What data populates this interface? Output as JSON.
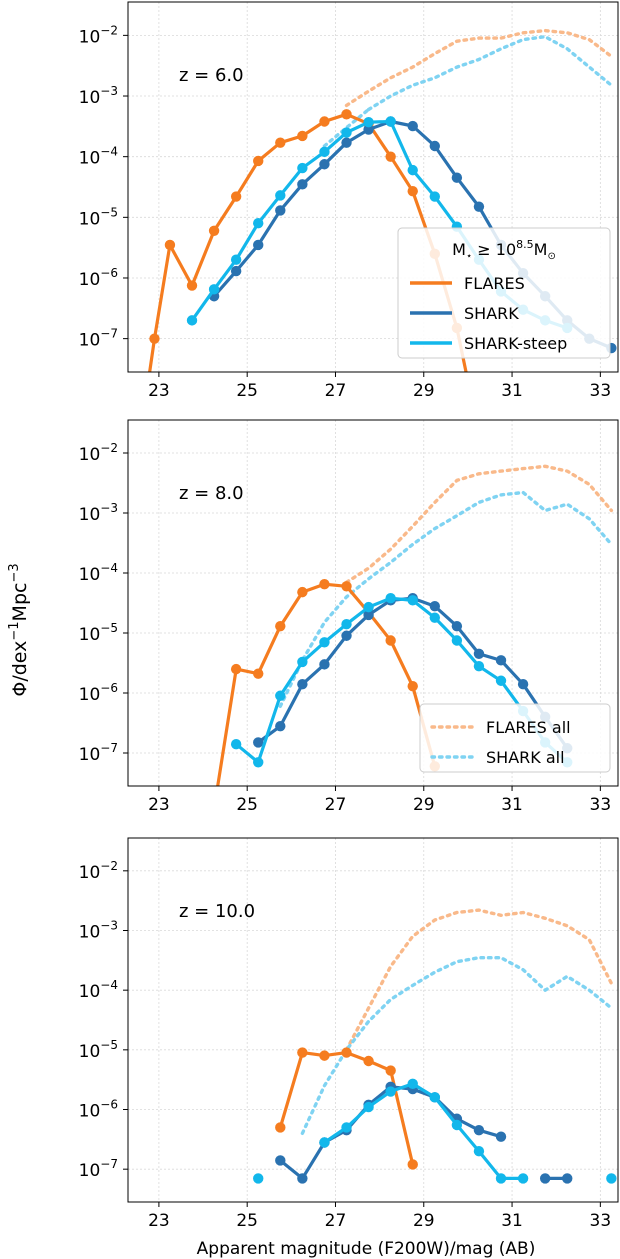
{
  "figure": {
    "ylabel": "Φ/dex⁻¹Mpc⁻³",
    "xlabel": "Apparent magnitude (F200W)/mag (AB)"
  },
  "colors": {
    "FLARES": "#f57c1f",
    "SHARK": "#2a72b0",
    "SHARK-steep": "#12b7eb",
    "FLARES all": "#f9b98a",
    "SHARK all": "#7fd3f2"
  },
  "chart_data": [
    {
      "type": "line",
      "annotation": "z = 6.0",
      "xlim": [
        22.3,
        33.4
      ],
      "ylim_log10": [
        -7.55,
        -1.45
      ],
      "y_scale": "log",
      "grid": true,
      "x_ticks": [
        "23",
        "25",
        "27",
        "29",
        "31",
        "33"
      ],
      "y_ticks": [
        {
          "exp": -2,
          "base": "10",
          "sup": "−2"
        },
        {
          "exp": -3,
          "base": "10",
          "sup": "−3"
        },
        {
          "exp": -4,
          "base": "10",
          "sup": "−4"
        },
        {
          "exp": -5,
          "base": "10",
          "sup": "−5"
        },
        {
          "exp": -6,
          "base": "10",
          "sup": "−6"
        },
        {
          "exp": -7,
          "base": "10",
          "sup": "−7"
        }
      ],
      "legend": {
        "placement": "lower-right",
        "title_main": "M",
        "title_sub": "⋆",
        "title_mid": " ≥ 10",
        "title_sup": "8.5",
        "title_end": "M",
        "title_end_sub": "⊙",
        "entries": [
          "FLARES",
          "SHARK",
          "SHARK-steep"
        ]
      },
      "series": [
        {
          "name": "FLARES all",
          "style": "dotted",
          "x": [
            27.25,
            27.75,
            28.25,
            28.75,
            29.25,
            29.75,
            30.25,
            30.75,
            31.25,
            31.75,
            32.25,
            32.75,
            33.25
          ],
          "y": [
            0.0007,
            0.0012,
            0.002,
            0.003,
            0.005,
            0.008,
            0.009,
            0.009,
            0.011,
            0.012,
            0.011,
            0.0085,
            0.0045
          ]
        },
        {
          "name": "SHARK all",
          "style": "dotted",
          "x": [
            27.75,
            28.25,
            28.75,
            29.25,
            29.75,
            30.25,
            30.75,
            31.25,
            31.75,
            32.25,
            32.75,
            33.25
          ],
          "y": [
            0.0006,
            0.001,
            0.0015,
            0.002,
            0.003,
            0.004,
            0.006,
            0.0085,
            0.0095,
            0.006,
            0.003,
            0.0015
          ]
        },
        {
          "name": "SHARK all",
          "style": "dotted",
          "x": [
            26.75,
            27.25,
            27.75
          ],
          "y": [
            0.00015,
            0.0003,
            0.0006
          ]
        },
        {
          "name": "FLARES",
          "style": "solid",
          "x": [
            22.7,
            22.9,
            23.25,
            23.75,
            24.25,
            24.75,
            25.25,
            25.75,
            26.25,
            26.75,
            27.25,
            27.75,
            28.25,
            28.75,
            29.25,
            29.75,
            30.0
          ],
          "y": [
            1e-08,
            1e-07,
            3.5e-06,
            7.5e-07,
            6e-06,
            2.2e-05,
            8.5e-05,
            0.00017,
            0.00022,
            0.00038,
            0.0005,
            0.00035,
            0.0001,
            2.7e-05,
            2.5e-06,
            1.5e-07,
            2e-08
          ]
        },
        {
          "name": "SHARK",
          "style": "solid",
          "x": [
            24.25,
            24.75,
            25.25,
            25.75,
            26.25,
            26.75,
            27.25,
            27.75,
            28.25,
            28.75,
            29.25,
            29.75,
            30.25,
            30.75,
            31.25,
            31.75,
            32.25,
            32.75,
            33.25
          ],
          "y": [
            5e-07,
            1.3e-06,
            3.5e-06,
            1.3e-05,
            3.5e-05,
            7.5e-05,
            0.00017,
            0.00028,
            0.00038,
            0.00032,
            0.00015,
            4.5e-05,
            1.5e-05,
            3.5e-06,
            1.2e-06,
            5e-07,
            2e-07,
            1e-07,
            7e-08
          ]
        },
        {
          "name": "SHARK-steep",
          "style": "solid",
          "x": [
            23.75,
            24.25,
            24.75,
            25.25,
            25.75,
            26.25,
            26.75,
            27.25,
            27.75,
            28.25,
            28.75,
            29.25,
            29.75,
            30.25,
            30.75,
            31.25,
            31.75,
            32.25
          ],
          "y": [
            2e-07,
            6.5e-07,
            2e-06,
            8e-06,
            2.3e-05,
            6.5e-05,
            0.00012,
            0.00025,
            0.00037,
            0.00038,
            6e-05,
            2.2e-05,
            7e-06,
            2e-06,
            6e-07,
            3e-07,
            2e-07,
            1.5e-07
          ]
        }
      ]
    },
    {
      "type": "line",
      "annotation": "z = 8.0",
      "xlim": [
        22.3,
        33.4
      ],
      "ylim_log10": [
        -7.55,
        -1.45
      ],
      "y_scale": "log",
      "grid": true,
      "x_ticks": [
        "23",
        "25",
        "27",
        "29",
        "31",
        "33"
      ],
      "y_ticks": [
        {
          "exp": -2,
          "base": "10",
          "sup": "−2"
        },
        {
          "exp": -3,
          "base": "10",
          "sup": "−3"
        },
        {
          "exp": -4,
          "base": "10",
          "sup": "−4"
        },
        {
          "exp": -5,
          "base": "10",
          "sup": "−5"
        },
        {
          "exp": -6,
          "base": "10",
          "sup": "−6"
        },
        {
          "exp": -7,
          "base": "10",
          "sup": "−7"
        }
      ],
      "legend": {
        "placement": "lower-right",
        "entries": [
          "FLARES all",
          "SHARK all"
        ]
      },
      "series": [
        {
          "name": "FLARES all",
          "style": "dotted",
          "x": [
            27.25,
            27.75,
            28.25,
            28.75,
            29.25,
            29.75,
            30.25,
            30.75,
            31.25,
            31.75,
            32.25,
            32.75,
            33.25
          ],
          "y": [
            7e-05,
            0.00012,
            0.00025,
            0.0006,
            0.0015,
            0.0035,
            0.0045,
            0.005,
            0.0055,
            0.006,
            0.005,
            0.003,
            0.0011
          ]
        },
        {
          "name": "SHARK all",
          "style": "dotted",
          "x": [
            25.75,
            26.25,
            26.75,
            27.25,
            27.75,
            28.25,
            28.75,
            29.25,
            29.75,
            30.25,
            30.75,
            31.25,
            31.75,
            32.25,
            32.75,
            33.25
          ],
          "y": [
            6e-07,
            3.5e-06,
            1.5e-05,
            4e-05,
            8e-05,
            0.00015,
            0.0003,
            0.00055,
            0.0009,
            0.0015,
            0.002,
            0.0022,
            0.0011,
            0.0014,
            0.0008,
            0.0003
          ]
        },
        {
          "name": "FLARES",
          "style": "solid",
          "x": [
            24.3,
            24.75,
            25.25,
            25.75,
            26.25,
            26.75,
            27.25,
            27.75,
            28.25,
            28.75,
            29.25
          ],
          "y": [
            2e-08,
            2.5e-06,
            2.1e-06,
            1.3e-05,
            4.8e-05,
            6.5e-05,
            6e-05,
            2.2e-05,
            7.5e-06,
            1.3e-06,
            6e-08
          ]
        },
        {
          "name": "SHARK",
          "style": "solid",
          "x": [
            25.25,
            25.75,
            26.25,
            26.75,
            27.25,
            27.75,
            28.25,
            28.75,
            29.25,
            29.75,
            30.25,
            30.75,
            31.25,
            31.75,
            32.25
          ],
          "y": [
            1.5e-07,
            2.8e-07,
            1.4e-06,
            3e-06,
            9e-06,
            2e-05,
            3.5e-05,
            3.8e-05,
            2.8e-05,
            1.3e-05,
            4.5e-06,
            3.5e-06,
            1.4e-06,
            4e-07,
            1.2e-07
          ]
        },
        {
          "name": "SHARK-steep",
          "style": "solid",
          "x": [
            24.75,
            25.25,
            25.75,
            26.25,
            26.75,
            27.25,
            27.75,
            28.25,
            28.75,
            29.25,
            29.75,
            30.25,
            30.75,
            31.25,
            31.75,
            32.25
          ],
          "y": [
            1.4e-07,
            7e-08,
            9e-07,
            3.3e-06,
            7e-06,
            1.4e-05,
            2.7e-05,
            3.8e-05,
            3.5e-05,
            1.8e-05,
            7.5e-06,
            2.8e-06,
            1.6e-06,
            5e-07,
            1.5e-07,
            7e-08
          ]
        }
      ]
    },
    {
      "type": "line",
      "annotation": "z = 10.0",
      "xlim": [
        22.3,
        33.4
      ],
      "ylim_log10": [
        -7.55,
        -1.45
      ],
      "y_scale": "log",
      "grid": true,
      "x_ticks": [
        "23",
        "25",
        "27",
        "29",
        "31",
        "33"
      ],
      "y_ticks": [
        {
          "exp": -2,
          "base": "10",
          "sup": "−2"
        },
        {
          "exp": -3,
          "base": "10",
          "sup": "−3"
        },
        {
          "exp": -4,
          "base": "10",
          "sup": "−4"
        },
        {
          "exp": -5,
          "base": "10",
          "sup": "−5"
        },
        {
          "exp": -6,
          "base": "10",
          "sup": "−6"
        },
        {
          "exp": -7,
          "base": "10",
          "sup": "−7"
        }
      ],
      "series": [
        {
          "name": "FLARES all",
          "style": "dotted",
          "x": [
            27.25,
            27.75,
            28.25,
            28.75,
            29.25,
            29.75,
            30.25,
            30.75,
            31.25,
            31.75,
            32.25,
            32.75,
            33.25
          ],
          "y": [
            1e-05,
            5e-05,
            0.00025,
            0.0008,
            0.0015,
            0.002,
            0.0022,
            0.0018,
            0.002,
            0.0016,
            0.0012,
            0.0007,
            0.00013
          ]
        },
        {
          "name": "SHARK all",
          "style": "dotted",
          "x": [
            26.25,
            26.75,
            27.25,
            27.75,
            28.25,
            28.75,
            29.25,
            29.75,
            30.25,
            30.75,
            31.25,
            31.75,
            32.25,
            32.75,
            33.25
          ],
          "y": [
            4e-07,
            2.5e-06,
            1e-05,
            3e-05,
            7e-05,
            0.00012,
            0.0002,
            0.0003,
            0.00035,
            0.00035,
            0.00022,
            0.0001,
            0.00017,
            0.0001,
            5e-05
          ]
        },
        {
          "name": "FLARES",
          "style": "solid",
          "x": [
            25.75,
            26.25,
            26.75,
            27.25,
            27.75,
            28.25,
            28.75
          ],
          "y": [
            5e-07,
            9e-06,
            8e-06,
            9e-06,
            6.5e-06,
            4.5e-06,
            1.2e-07
          ]
        },
        {
          "name": "SHARK",
          "style": "solid",
          "x": [
            25.75,
            26.25,
            26.75,
            27.25,
            27.75,
            28.25,
            28.75,
            29.25,
            29.75,
            30.25,
            30.75
          ],
          "y": [
            1.4e-07,
            7e-08,
            2.8e-07,
            4.5e-07,
            1.2e-06,
            2.4e-06,
            2.2e-06,
            1.6e-06,
            7e-07,
            4.5e-07,
            3.5e-07
          ]
        },
        {
          "name": "SHARK",
          "style": "solid",
          "x": [
            31.75,
            32.25
          ],
          "y": [
            7e-08,
            7e-08
          ]
        },
        {
          "name": "SHARK-steep",
          "style": "solid",
          "x": [
            26.75,
            27.25,
            27.75,
            28.25,
            28.75,
            29.25,
            29.75,
            30.25,
            30.75,
            31.25
          ],
          "y": [
            2.8e-07,
            5e-07,
            1.1e-06,
            2e-06,
            2.7e-06,
            1.6e-06,
            5.5e-07,
            2e-07,
            7e-08,
            7e-08
          ]
        },
        {
          "name": "SHARK-steep",
          "style": "markers",
          "x": [
            25.25,
            33.25
          ],
          "y": [
            7e-08,
            7e-08
          ]
        }
      ]
    }
  ]
}
